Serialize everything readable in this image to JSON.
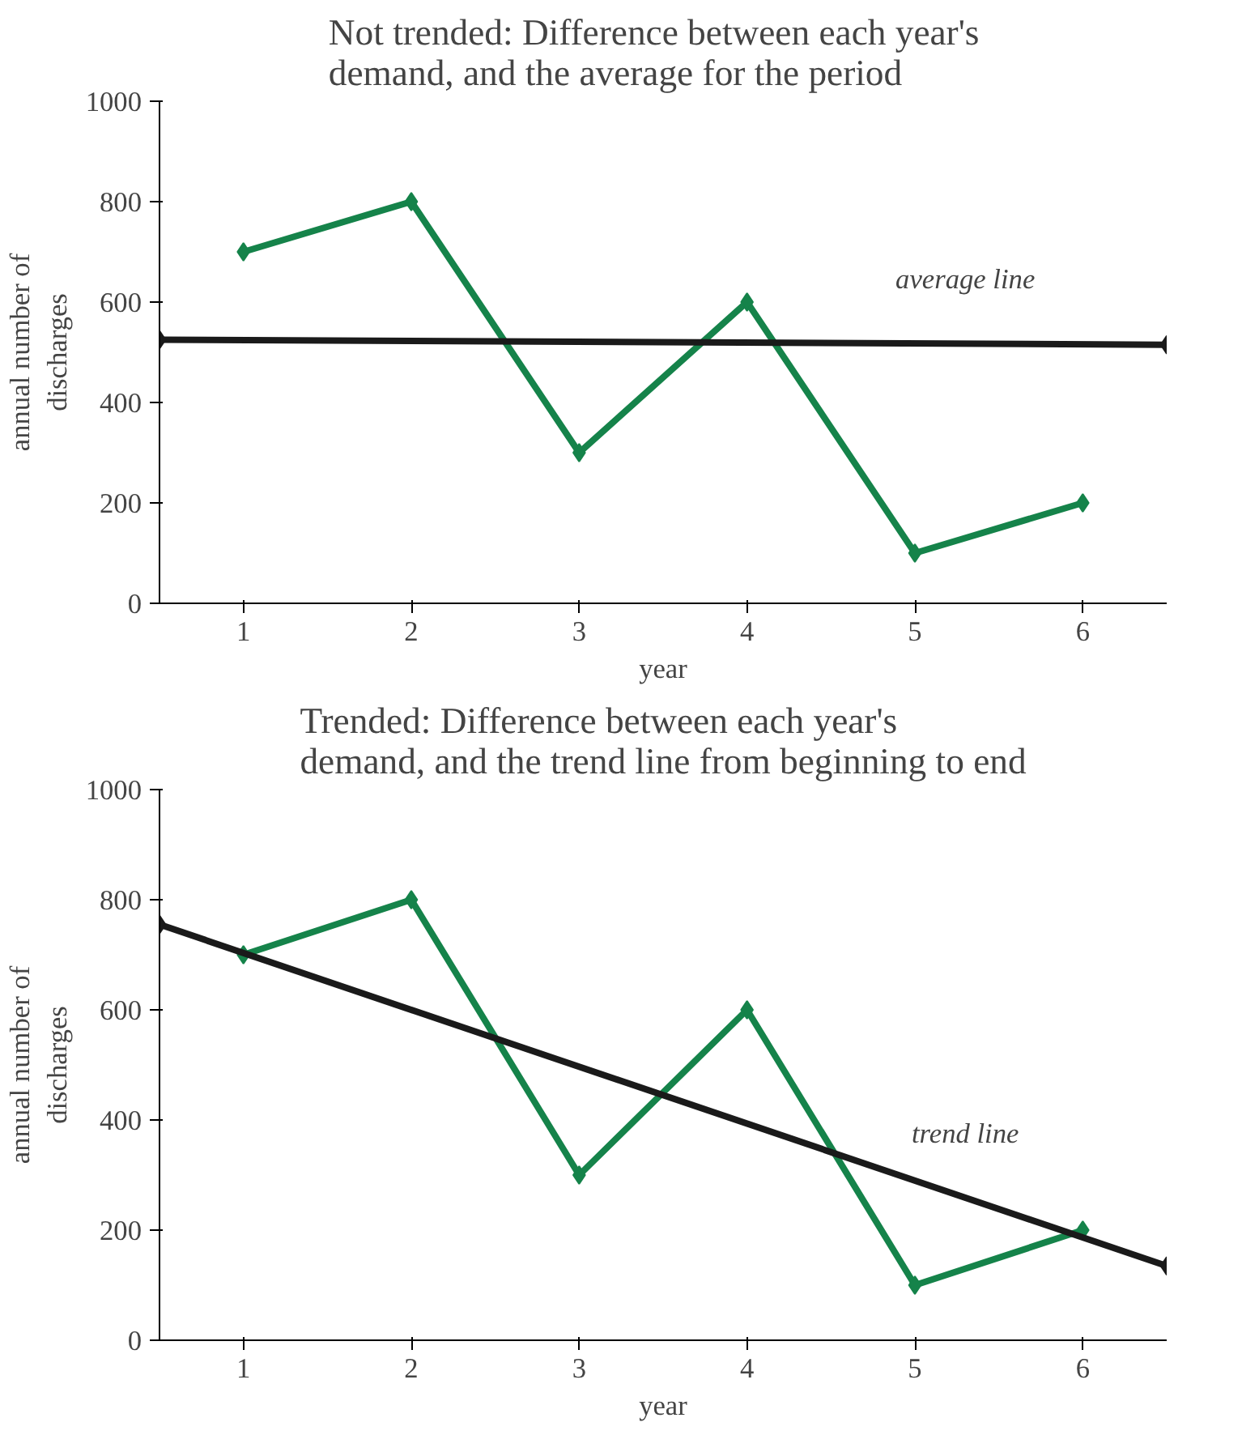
{
  "chart_data": [
    {
      "type": "line",
      "title": "Not trended:   Difference between each year's\ndemand, and the average for the period",
      "xlabel": "year",
      "ylabel": "annual number of\ndischarges",
      "xlim": [
        0.5,
        6.5
      ],
      "xticks": [
        1,
        2,
        3,
        4,
        5,
        6
      ],
      "ylim": [
        0,
        1000
      ],
      "yticks": [
        0,
        200,
        400,
        600,
        800,
        1000
      ],
      "marker": "diamond",
      "series": [
        {
          "color": "#15834a",
          "x": [
            1,
            2,
            3,
            4,
            5,
            6
          ],
          "values": [
            700,
            800,
            300,
            600,
            100,
            200
          ]
        },
        {
          "color": "#1a1a1a",
          "x": [
            0.5,
            6.5
          ],
          "values": [
            525,
            515
          ]
        }
      ],
      "annotations": [
        "average line"
      ]
    },
    {
      "type": "line",
      "title": "Trended:   Difference between each year's\ndemand, and the trend line from beginning to end",
      "xlabel": "year",
      "ylabel": "annual number of\ndischarges",
      "xlim": [
        0.5,
        6.5
      ],
      "xticks": [
        1,
        2,
        3,
        4,
        5,
        6
      ],
      "ylim": [
        0,
        1000
      ],
      "yticks": [
        0,
        200,
        400,
        600,
        800,
        1000
      ],
      "marker": "diamond",
      "series": [
        {
          "color": "#15834a",
          "x": [
            1,
            2,
            3,
            4,
            5,
            6
          ],
          "values": [
            700,
            800,
            300,
            600,
            100,
            200
          ]
        },
        {
          "color": "#1a1a1a",
          "x": [
            0.5,
            6.5
          ],
          "values": [
            755,
            135
          ]
        }
      ],
      "annotations": [
        "trend line"
      ]
    }
  ]
}
